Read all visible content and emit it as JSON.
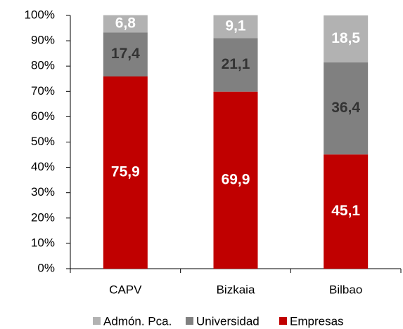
{
  "chart_data": {
    "type": "stacked_bar_100",
    "categories": [
      "CAPV",
      "Bizkaia",
      "Bilbao"
    ],
    "series": [
      {
        "name": "Admón. Pca.",
        "color": "#b2b2b2",
        "label_color": "#ffffff",
        "values": [
          6.8,
          9.1,
          18.5
        ],
        "value_labels": [
          "6,8",
          "9,1",
          "18,5"
        ]
      },
      {
        "name": "Universidad",
        "color": "#808080",
        "label_color": "#333333",
        "values": [
          17.4,
          21.1,
          36.4
        ],
        "value_labels": [
          "17,4",
          "21,1",
          "36,4"
        ]
      },
      {
        "name": "Empresas",
        "color": "#c00000",
        "label_color": "#ffffff",
        "values": [
          75.9,
          69.9,
          45.1
        ],
        "value_labels": [
          "75,9",
          "69,9",
          "45,1"
        ]
      }
    ],
    "ylim": [
      0,
      100
    ],
    "yticks": [
      {
        "value": 0,
        "label": "0%"
      },
      {
        "value": 10,
        "label": "10%"
      },
      {
        "value": 20,
        "label": "20%"
      },
      {
        "value": 30,
        "label": "30%"
      },
      {
        "value": 40,
        "label": "40%"
      },
      {
        "value": 50,
        "label": "50%"
      },
      {
        "value": 60,
        "label": "60%"
      },
      {
        "value": 70,
        "label": "70%"
      },
      {
        "value": 80,
        "label": "80%"
      },
      {
        "value": 90,
        "label": "90%"
      },
      {
        "value": 100,
        "label": "100%"
      }
    ],
    "legend": "bottom"
  }
}
